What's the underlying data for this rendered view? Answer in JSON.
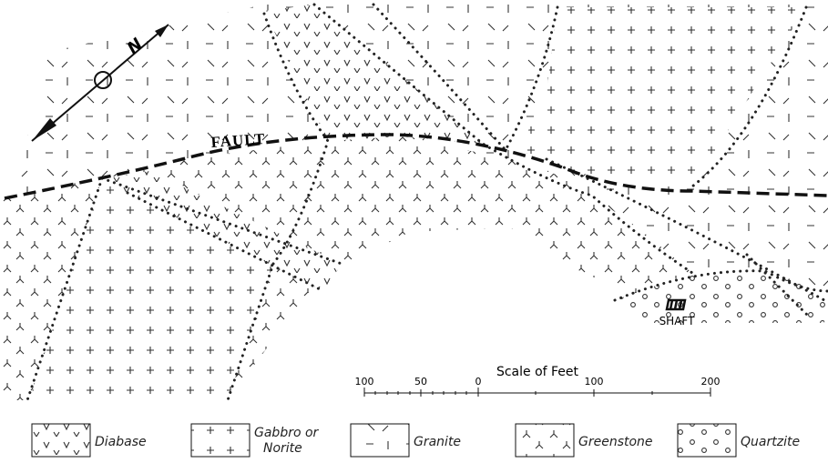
{
  "map": {
    "north": "N",
    "fault": "FAULT",
    "shaft": "SHAFT",
    "scale": {
      "title": "Scale of Feet",
      "labels": [
        "100",
        "50",
        "0",
        "100",
        "200"
      ]
    },
    "legend": [
      {
        "lines": [
          "Diabase"
        ]
      },
      {
        "lines": [
          "Gabbro or",
          "Norite"
        ]
      },
      {
        "lines": [
          "Granite"
        ]
      },
      {
        "lines": [
          "Greenstone"
        ]
      },
      {
        "lines": [
          "Quartzite"
        ]
      }
    ]
  }
}
